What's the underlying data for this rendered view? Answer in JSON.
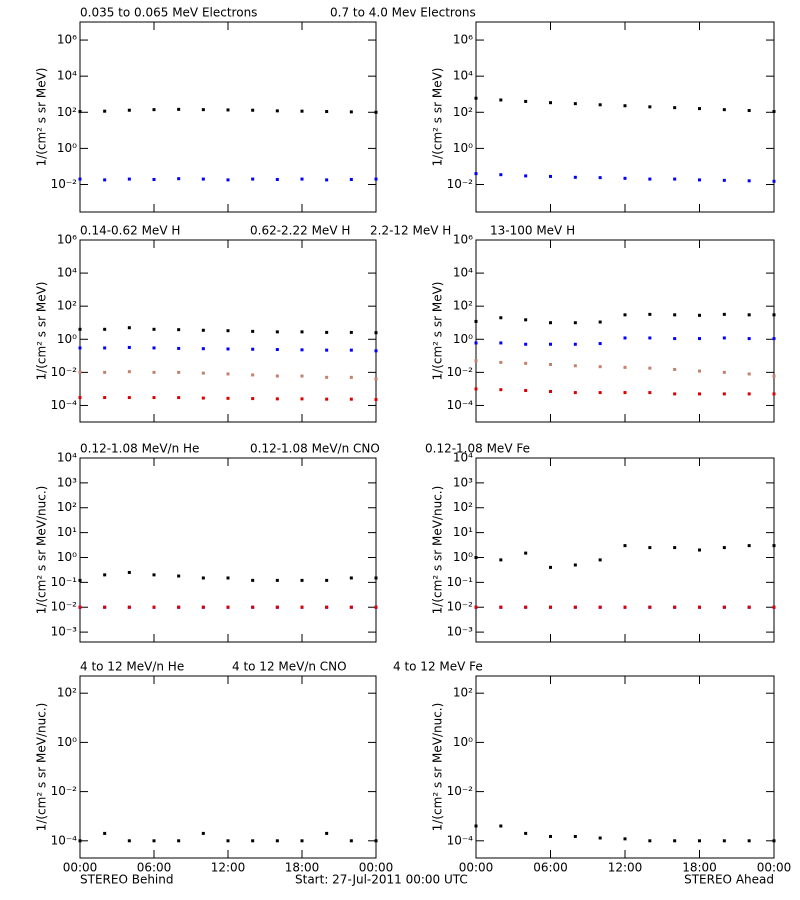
{
  "footer": {
    "left": "STEREO Behind",
    "center": "Start: 27-Jul-2011 00:00 UTC",
    "right": "STEREO Ahead"
  },
  "chart_data": [
    {
      "type": "scatter",
      "log": true,
      "ylabel": "1/(cm² s sr MeV)",
      "x": [
        0,
        2,
        4,
        6,
        8,
        10,
        12,
        14,
        16,
        18,
        20,
        22,
        24
      ],
      "xlim": [
        0,
        24
      ],
      "xticks": [
        0,
        6,
        12,
        18,
        24
      ],
      "ylim": [
        0.0003,
        10000000
      ],
      "yticks": [
        {
          "value": 0.01,
          "label": "10⁻²"
        },
        {
          "value": 1,
          "label": "10⁰"
        },
        {
          "value": 100,
          "label": "10²"
        },
        {
          "value": 10000,
          "label": "10⁴"
        },
        {
          "value": 1000000,
          "label": "10⁶"
        }
      ],
      "series": [
        {
          "name": "0.035 to 0.065 MeV Electrons",
          "color": "#000000",
          "values": [
            110,
            115,
            130,
            140,
            145,
            140,
            135,
            130,
            120,
            115,
            110,
            105,
            100
          ]
        },
        {
          "name": "0.7 to 4.0 Mev Electrons",
          "color": "#0000ff",
          "values": [
            0.02,
            0.018,
            0.02,
            0.019,
            0.021,
            0.02,
            0.018,
            0.02,
            0.019,
            0.02,
            0.018,
            0.019,
            0.02
          ]
        }
      ]
    },
    {
      "type": "scatter",
      "log": true,
      "ylabel": "1/(cm² s sr MeV)",
      "x": [
        0,
        2,
        4,
        6,
        8,
        10,
        12,
        14,
        16,
        18,
        20,
        22,
        24
      ],
      "xlim": [
        0,
        24
      ],
      "xticks": [
        0,
        6,
        12,
        18,
        24
      ],
      "ylim": [
        0.0003,
        10000000
      ],
      "yticks": [
        {
          "value": 0.01,
          "label": "10⁻²"
        },
        {
          "value": 1,
          "label": "10⁰"
        },
        {
          "value": 100,
          "label": "10²"
        },
        {
          "value": 10000,
          "label": "10⁴"
        },
        {
          "value": 1000000,
          "label": "10⁶"
        }
      ],
      "series": [
        {
          "color": "#000000",
          "values": [
            600,
            480,
            400,
            340,
            300,
            260,
            230,
            200,
            180,
            160,
            140,
            125,
            110
          ]
        },
        {
          "color": "#0000ff",
          "values": [
            0.04,
            0.035,
            0.03,
            0.028,
            0.025,
            0.024,
            0.022,
            0.02,
            0.02,
            0.018,
            0.017,
            0.016,
            0.015
          ]
        }
      ]
    },
    {
      "type": "scatter",
      "log": true,
      "ylabel": "1/(cm² s sr MeV)",
      "x": [
        0,
        2,
        4,
        6,
        8,
        10,
        12,
        14,
        16,
        18,
        20,
        22,
        24
      ],
      "xlim": [
        0,
        24
      ],
      "xticks": [
        0,
        6,
        12,
        18,
        24
      ],
      "ylim": [
        1e-05,
        1000000
      ],
      "yticks": [
        {
          "value": 0.0001,
          "label": "10⁻⁴"
        },
        {
          "value": 0.01,
          "label": "10⁻²"
        },
        {
          "value": 1,
          "label": "10⁰"
        },
        {
          "value": 100,
          "label": "10²"
        },
        {
          "value": 10000,
          "label": "10⁴"
        },
        {
          "value": 1000000,
          "label": "10⁶"
        }
      ],
      "series": [
        {
          "name": "0.14-0.62 MeV H",
          "color": "#000000",
          "values": [
            4,
            4,
            5,
            4,
            3.8,
            3.5,
            3.3,
            3,
            2.8,
            2.8,
            2.6,
            2.6,
            2.5
          ]
        },
        {
          "name": "0.62-2.22 MeV H",
          "color": "#0000ff",
          "values": [
            0.3,
            0.3,
            0.32,
            0.3,
            0.28,
            0.27,
            0.26,
            0.25,
            0.24,
            0.23,
            0.22,
            0.22,
            0.2
          ]
        },
        {
          "name": "2.2-12 MeV H",
          "color": "#c4806a",
          "values": [
            0.01,
            0.01,
            0.011,
            0.01,
            0.01,
            0.009,
            0.008,
            0.007,
            0.006,
            0.006,
            0.005,
            0.005,
            0.004
          ]
        },
        {
          "name": "13-100 MeV H",
          "color": "#dd0000",
          "values": [
            0.0003,
            0.0003,
            0.0003,
            0.0003,
            0.0003,
            0.00028,
            0.00027,
            0.00026,
            0.00025,
            0.00025,
            0.00024,
            0.00024,
            0.00023
          ]
        }
      ]
    },
    {
      "type": "scatter",
      "log": true,
      "ylabel": "1/(cm² s sr MeV)",
      "x": [
        0,
        2,
        4,
        6,
        8,
        10,
        12,
        14,
        16,
        18,
        20,
        22,
        24
      ],
      "xlim": [
        0,
        24
      ],
      "xticks": [
        0,
        6,
        12,
        18,
        24
      ],
      "ylim": [
        1e-05,
        1000000
      ],
      "yticks": [
        {
          "value": 0.0001,
          "label": "10⁻⁴"
        },
        {
          "value": 0.01,
          "label": "10⁻²"
        },
        {
          "value": 1,
          "label": "10⁰"
        },
        {
          "value": 100,
          "label": "10²"
        },
        {
          "value": 10000,
          "label": "10⁴"
        },
        {
          "value": 1000000,
          "label": "10⁶"
        }
      ],
      "series": [
        {
          "color": "#000000",
          "values": [
            12,
            20,
            15,
            10,
            10,
            11,
            30,
            32,
            30,
            28,
            32,
            30,
            30
          ]
        },
        {
          "color": "#0000ff",
          "values": [
            0.6,
            0.6,
            0.5,
            0.5,
            0.5,
            0.55,
            1.2,
            1.2,
            1.1,
            1.1,
            1.2,
            1.1,
            1.1
          ]
        },
        {
          "color": "#c4806a",
          "values": [
            0.05,
            0.04,
            0.035,
            0.03,
            0.025,
            0.022,
            0.02,
            0.018,
            0.015,
            0.012,
            0.01,
            0.008,
            0.006
          ]
        },
        {
          "color": "#dd0000",
          "values": [
            0.001,
            0.0009,
            0.0008,
            0.0007,
            0.0006,
            0.0006,
            0.0006,
            0.0006,
            0.0005,
            0.0005,
            0.0005,
            0.0005,
            0.0005
          ]
        }
      ]
    },
    {
      "type": "scatter",
      "log": true,
      "ylabel": "1/(cm² s sr MeV/nuc.)",
      "x": [
        0,
        2,
        4,
        6,
        8,
        10,
        12,
        14,
        16,
        18,
        20,
        22,
        24
      ],
      "xlim": [
        0,
        24
      ],
      "xticks": [
        0,
        6,
        12,
        18,
        24
      ],
      "ylim": [
        0.0004,
        10000
      ],
      "yticks": [
        {
          "value": 0.001,
          "label": "10⁻³"
        },
        {
          "value": 0.01,
          "label": "10⁻²"
        },
        {
          "value": 0.1,
          "label": "10⁻¹"
        },
        {
          "value": 1,
          "label": "10⁰"
        },
        {
          "value": 10,
          "label": "10¹"
        },
        {
          "value": 100,
          "label": "10²"
        },
        {
          "value": 1000,
          "label": "10³"
        },
        {
          "value": 10000,
          "label": "10⁴"
        }
      ],
      "series": [
        {
          "name": "0.12-1.08 MeV/n He",
          "color": "#000000",
          "values": [
            0.12,
            0.2,
            0.25,
            0.2,
            0.18,
            0.15,
            0.15,
            0.12,
            0.12,
            0.12,
            0.12,
            0.15,
            0.15
          ]
        },
        {
          "name": "0.12-1.08 MeV/n CNO",
          "color": "#0000ff",
          "values": [
            0.01,
            0.01,
            0.01,
            0.01,
            0.01,
            0.01,
            0.01,
            0.01,
            0.01,
            0.01,
            0.01,
            0.01,
            0.01
          ]
        },
        {
          "name": "0.12-1.08 MeV Fe",
          "color": "#dd0000",
          "values": [
            0.01,
            0.01,
            0.01,
            0.01,
            0.01,
            0.01,
            0.01,
            0.01,
            0.01,
            0.01,
            0.01,
            0.01,
            0.01
          ]
        }
      ]
    },
    {
      "type": "scatter",
      "log": true,
      "ylabel": "1/(cm² s sr MeV/nuc.)",
      "x": [
        0,
        2,
        4,
        6,
        8,
        10,
        12,
        14,
        16,
        18,
        20,
        22,
        24
      ],
      "xlim": [
        0,
        24
      ],
      "xticks": [
        0,
        6,
        12,
        18,
        24
      ],
      "ylim": [
        0.0004,
        10000
      ],
      "yticks": [
        {
          "value": 0.001,
          "label": "10⁻³"
        },
        {
          "value": 0.01,
          "label": "10⁻²"
        },
        {
          "value": 0.1,
          "label": "10⁻¹"
        },
        {
          "value": 1,
          "label": "10⁰"
        },
        {
          "value": 10,
          "label": "10¹"
        },
        {
          "value": 100,
          "label": "10²"
        },
        {
          "value": 1000,
          "label": "10³"
        },
        {
          "value": 10000,
          "label": "10⁴"
        }
      ],
      "series": [
        {
          "color": "#000000",
          "values": [
            1,
            0.8,
            1.5,
            0.4,
            0.5,
            0.8,
            3,
            2.5,
            2.5,
            2,
            2.5,
            3,
            3
          ]
        },
        {
          "color": "#0000ff",
          "values": [
            0.01,
            0.01,
            0.01,
            0.01,
            0.01,
            0.01,
            0.01,
            0.01,
            0.01,
            0.01,
            0.01,
            0.01,
            0.01
          ]
        },
        {
          "color": "#dd0000",
          "values": [
            0.01,
            0.01,
            0.01,
            0.01,
            0.01,
            0.01,
            0.01,
            0.01,
            0.01,
            0.01,
            0.01,
            0.01,
            0.01
          ]
        }
      ]
    },
    {
      "type": "scatter",
      "log": true,
      "ylabel": "1/(cm² s sr MeV/nuc.)",
      "x": [
        0,
        2,
        4,
        6,
        8,
        10,
        12,
        14,
        16,
        18,
        20,
        22,
        24
      ],
      "xlim": [
        0,
        24
      ],
      "xticks": [
        {
          "value": 0,
          "label": "00:00"
        },
        {
          "value": 6,
          "label": "06:00"
        },
        {
          "value": 12,
          "label": "12:00"
        },
        {
          "value": 18,
          "label": "18:00"
        },
        {
          "value": 24,
          "label": "00:00"
        }
      ],
      "ylim": [
        2e-05,
        500
      ],
      "yticks": [
        {
          "value": 0.0001,
          "label": "10⁻⁴"
        },
        {
          "value": 0.01,
          "label": "10⁻²"
        },
        {
          "value": 1,
          "label": "10⁰"
        },
        {
          "value": 100,
          "label": "10²"
        }
      ],
      "series": [
        {
          "name": "4 to 12 MeV/n He",
          "color": "#000000",
          "values": [
            0.0001,
            0.0002,
            0.0001,
            0.0001,
            0.0001,
            0.0002,
            0.0001,
            0.0001,
            0.0001,
            0.0001,
            0.0002,
            0.0001,
            0.0001
          ]
        },
        {
          "name": "4 to 12 MeV/n CNO",
          "color": "#0000ff",
          "values": [
            null,
            null,
            null,
            null,
            null,
            null,
            null,
            null,
            null,
            null,
            null,
            null,
            null
          ]
        },
        {
          "name": "4 to 12 MeV Fe",
          "color": "#dd0000",
          "values": [
            null,
            null,
            null,
            null,
            null,
            null,
            null,
            null,
            null,
            null,
            null,
            null,
            null
          ]
        }
      ]
    },
    {
      "type": "scatter",
      "log": true,
      "ylabel": "1/(cm² s sr MeV/nuc.)",
      "x": [
        0,
        2,
        4,
        6,
        8,
        10,
        12,
        14,
        16,
        18,
        20,
        22,
        24
      ],
      "xlim": [
        0,
        24
      ],
      "xticks": [
        {
          "value": 0,
          "label": "00:00"
        },
        {
          "value": 6,
          "label": "06:00"
        },
        {
          "value": 12,
          "label": "12:00"
        },
        {
          "value": 18,
          "label": "18:00"
        },
        {
          "value": 24,
          "label": "00:00"
        }
      ],
      "ylim": [
        2e-05,
        500
      ],
      "yticks": [
        {
          "value": 0.0001,
          "label": "10⁻⁴"
        },
        {
          "value": 0.01,
          "label": "10⁻²"
        },
        {
          "value": 1,
          "label": "10⁰"
        },
        {
          "value": 100,
          "label": "10²"
        }
      ],
      "series": [
        {
          "color": "#000000",
          "values": [
            0.0004,
            0.0004,
            0.0002,
            0.00015,
            0.00015,
            0.00013,
            0.00012,
            0.0001,
            0.0001,
            0.0001,
            0.0001,
            0.0001,
            0.0001
          ]
        },
        {
          "color": "#0000ff",
          "values": [
            null,
            null,
            null,
            null,
            null,
            null,
            null,
            null,
            null,
            null,
            null,
            null,
            null
          ]
        },
        {
          "color": "#dd0000",
          "values": [
            null,
            null,
            null,
            null,
            null,
            null,
            null,
            null,
            null,
            null,
            null,
            null,
            null
          ]
        }
      ]
    }
  ]
}
